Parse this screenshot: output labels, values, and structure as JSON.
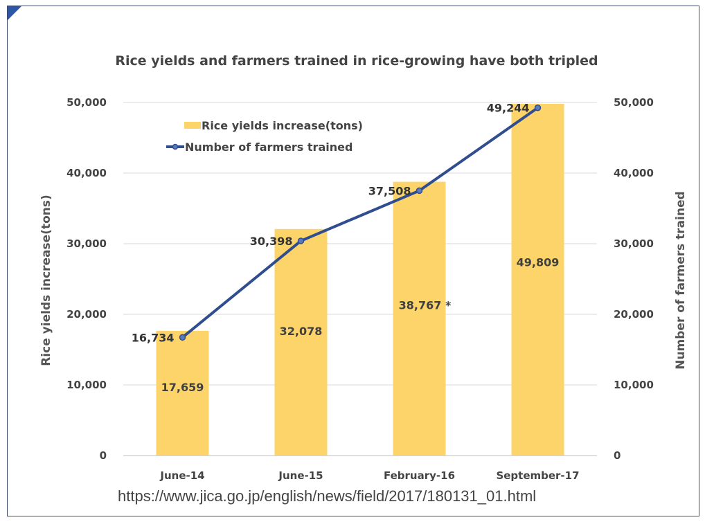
{
  "source_url": "https://www.jica.go.jp/english/news/field/2017/180131_01.html",
  "colors": {
    "bar": "#fcd46a",
    "line": "#2f4d8f",
    "grid": "#d9d9d9"
  },
  "chart_data": {
    "type": "bar",
    "title": "Rice yields and farmers trained in rice-growing have both tripled",
    "categories": [
      "June-14",
      "June-15",
      "February-16",
      "September-17"
    ],
    "series": [
      {
        "name": "Rice yields increase(tons)",
        "type": "bar",
        "axis": "left",
        "values": [
          17659,
          32078,
          38767,
          49809
        ],
        "labels": [
          "17,659",
          "32,078",
          "38,767 *",
          "49,809"
        ]
      },
      {
        "name": "Number of farmers trained",
        "type": "line",
        "axis": "right",
        "values": [
          16734,
          30398,
          37508,
          49244
        ],
        "labels": [
          "16,734",
          "30,398",
          "37,508",
          "49,244"
        ]
      }
    ],
    "ylabel": "Rice yields increase(tons)",
    "y2label": "Number of farmers trained",
    "ylim": [
      0,
      50000
    ],
    "y2lim": [
      0,
      50000
    ],
    "yticks": [
      "0",
      "10,000",
      "20,000",
      "30,000",
      "40,000",
      "50,000"
    ],
    "y2ticks": [
      "0",
      "10,000",
      "20,000",
      "30,000",
      "40,000",
      "50,000"
    ],
    "grid": true,
    "legend_position": "top-left"
  }
}
